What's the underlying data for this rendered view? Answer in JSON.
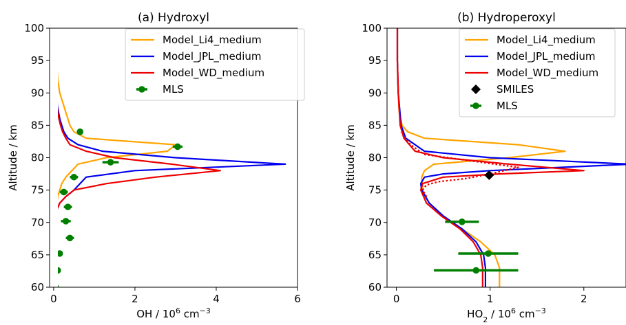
{
  "chart_data": [
    {
      "type": "line",
      "title": "(a) Hydroxyl",
      "xlabel": "OH / 10",
      "xlabel_sup": "6",
      "xlabel_unit": " cm",
      "xlabel_unit_sup": "−3",
      "ylabel": "Altitude / km",
      "xlim": [
        -0.1,
        6
      ],
      "ylim": [
        60,
        100
      ],
      "xticks": [
        0,
        2,
        4,
        6
      ],
      "yticks": [
        60,
        65,
        70,
        75,
        80,
        85,
        90,
        95,
        100
      ],
      "legend_position": "top-right",
      "series": [
        {
          "name": "Model_Li4_medium",
          "color": "#FFA500",
          "style": "solid",
          "x": [
            0.0,
            0.0,
            0.02,
            0.05,
            0.1,
            0.15,
            0.2,
            0.3,
            0.45,
            0.6,
            1.3,
            2.8,
            3.0,
            0.8,
            0.5,
            0.4,
            0.35,
            0.3,
            0.25,
            0.2,
            0.15,
            0.1,
            0.08,
            0.06,
            0.04,
            0.02,
            0.01
          ],
          "y": [
            60,
            65,
            70,
            72,
            74,
            75,
            76,
            77,
            78,
            79,
            80,
            81,
            82,
            83,
            84,
            85,
            86,
            87,
            88,
            89,
            90,
            92,
            94,
            95,
            97,
            99,
            100
          ]
        },
        {
          "name": "Model_JPL_medium",
          "color": "#0000EE",
          "style": "solid",
          "x": [
            0.0,
            0.0,
            0.03,
            0.08,
            0.15,
            0.3,
            0.5,
            0.8,
            2.0,
            5.7,
            3.0,
            1.2,
            0.6,
            0.35,
            0.25,
            0.2,
            0.15,
            0.12,
            0.09,
            0.07,
            0.05,
            0.03,
            0.02,
            0.01
          ],
          "y": [
            60,
            65,
            70,
            72,
            73,
            74,
            75,
            77,
            78,
            79,
            80,
            81,
            82,
            83,
            84,
            85,
            86,
            87,
            88,
            90,
            92,
            95,
            98,
            100
          ]
        },
        {
          "name": "Model_WD_medium",
          "color": "#EE0000",
          "style": "solid",
          "x": [
            0.0,
            0.0,
            0.03,
            0.08,
            0.15,
            0.3,
            0.5,
            1.3,
            2.5,
            4.1,
            2.9,
            1.5,
            0.8,
            0.4,
            0.3,
            0.22,
            0.17,
            0.13,
            0.1,
            0.07,
            0.05,
            0.03,
            0.02,
            0.01
          ],
          "y": [
            60,
            65,
            70,
            72,
            73,
            74,
            75,
            76,
            77,
            78,
            79,
            80,
            81,
            82,
            83,
            84,
            85,
            86,
            87,
            89,
            91,
            94,
            97,
            100
          ]
        }
      ],
      "points": [
        {
          "name": "MLS",
          "color": "#007F00",
          "x": [
            0.05,
            0.1,
            0.15,
            0.4,
            0.3,
            0.35,
            0.25,
            0.5,
            1.4,
            3.05,
            0.65
          ],
          "y": [
            60.0,
            62.6,
            65.2,
            67.6,
            70.2,
            72.4,
            74.7,
            77.0,
            79.3,
            81.7,
            84.0
          ],
          "xerr": [
            0.03,
            0.04,
            0.06,
            0.1,
            0.12,
            0.1,
            0.1,
            0.1,
            0.2,
            0.12,
            0.04
          ]
        }
      ]
    },
    {
      "type": "line",
      "title": "(b) Hydroperoxyl",
      "xlabel": "HO",
      "xlabel_sub": "2",
      "xlabel_mid": " / 10",
      "xlabel_sup": "6",
      "xlabel_unit": " cm",
      "xlabel_unit_sup": "−3",
      "ylabel": "Altitude / km",
      "xlim": [
        -0.1,
        2.45
      ],
      "ylim": [
        60,
        100
      ],
      "xticks": [
        0,
        1,
        2
      ],
      "yticks": [
        60,
        65,
        70,
        75,
        80,
        85,
        90,
        95,
        100
      ],
      "legend_position": "top-right",
      "series": [
        {
          "name": "Model_Li4_medium",
          "color": "#FFA500",
          "style": "solid",
          "x": [
            1.1,
            1.1,
            1.05,
            0.9,
            0.7,
            0.5,
            0.35,
            0.28,
            0.27,
            0.3,
            0.4,
            1.2,
            1.8,
            1.3,
            0.3,
            0.12,
            0.06,
            0.03,
            0.02,
            0.01,
            0.01
          ],
          "y": [
            60,
            63,
            65,
            67,
            69,
            71,
            73,
            75,
            77,
            78,
            79,
            80,
            81,
            82,
            83,
            84,
            85,
            87,
            90,
            95,
            100
          ]
        },
        {
          "name": "Model_JPL_medium",
          "color": "#0000EE",
          "style": "solid",
          "x": [
            0.95,
            0.95,
            0.93,
            0.85,
            0.7,
            0.5,
            0.35,
            0.27,
            0.26,
            0.3,
            0.5,
            1.0,
            2.5,
            1.0,
            0.3,
            0.1,
            0.05,
            0.02,
            0.01,
            0.01
          ],
          "y": [
            60,
            63,
            65,
            67,
            69,
            71,
            73,
            75,
            76,
            77,
            77.5,
            78,
            79,
            80,
            81,
            83,
            85,
            90,
            95,
            100
          ]
        },
        {
          "name": "Model_WD_medium",
          "color": "#EE0000",
          "style": "solid",
          "x": [
            0.92,
            0.92,
            0.9,
            0.82,
            0.68,
            0.48,
            0.32,
            0.26,
            0.28,
            0.5,
            1.1,
            2.0,
            1.2,
            0.5,
            0.2,
            0.08,
            0.04,
            0.02,
            0.01,
            0.01
          ],
          "y": [
            60,
            63,
            65,
            67,
            69,
            71,
            73,
            75,
            76,
            77,
            77.5,
            78,
            79,
            80,
            81,
            83,
            85,
            90,
            95,
            100
          ]
        },
        {
          "name": "",
          "color": "#EE0000",
          "style": "dotted",
          "x": [
            0.32,
            0.28,
            0.32,
            0.45,
            0.75,
            1.0,
            1.3,
            0.8,
            0.3,
            0.15,
            0.05
          ],
          "y": [
            74,
            75,
            75.8,
            76.3,
            76.8,
            77.5,
            78.5,
            79.5,
            80.5,
            82,
            84
          ]
        }
      ],
      "points": [
        {
          "name": "SMILES",
          "color": "#000000",
          "marker": "diamond",
          "x": [
            0.99
          ],
          "y": [
            77.3
          ],
          "xerr": [
            0
          ]
        },
        {
          "name": "MLS",
          "color": "#007F00",
          "marker": "circle",
          "x": [
            0.85,
            0.98,
            0.7
          ],
          "y": [
            62.6,
            65.2,
            70.1
          ],
          "xerr": [
            0.45,
            0.32,
            0.18
          ]
        }
      ]
    }
  ]
}
